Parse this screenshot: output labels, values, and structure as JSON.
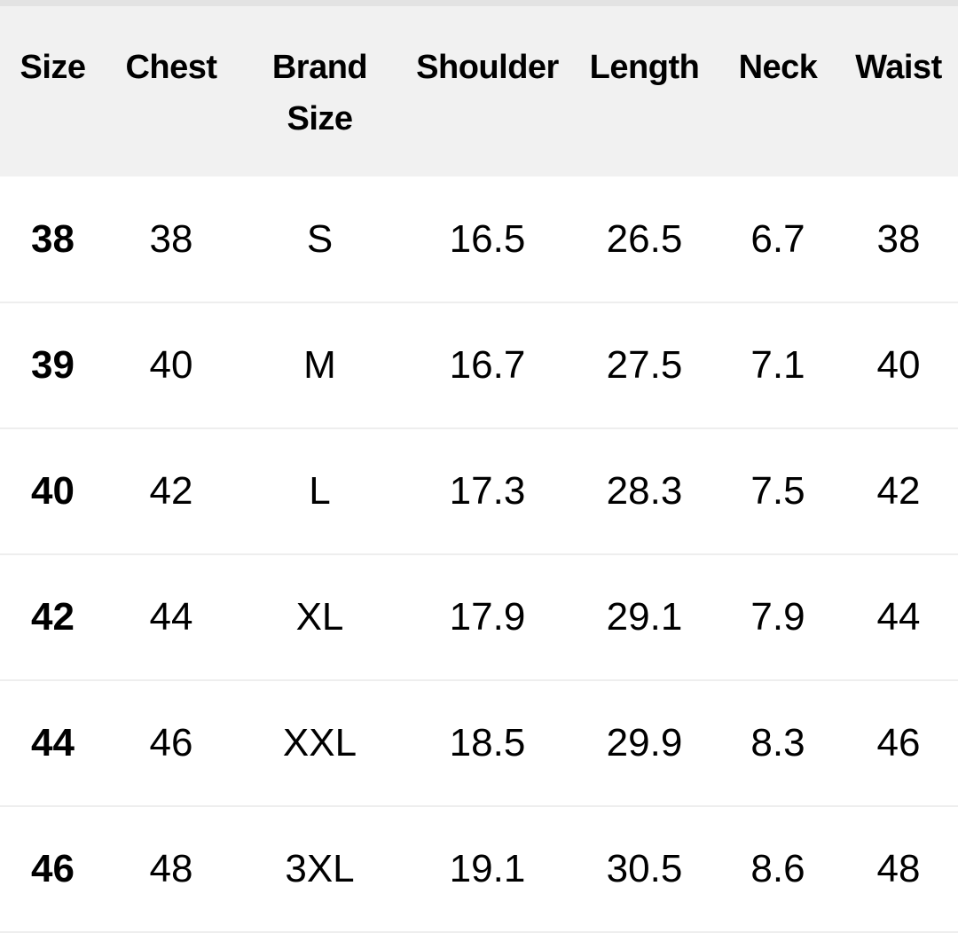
{
  "table": {
    "headers": [
      "Size",
      "Chest",
      "Brand Size",
      "Shoulder",
      "Length",
      "Neck",
      "Waist"
    ],
    "rows": [
      [
        "38",
        "38",
        "S",
        "16.5",
        "26.5",
        "6.7",
        "38"
      ],
      [
        "39",
        "40",
        "M",
        "16.7",
        "27.5",
        "7.1",
        "40"
      ],
      [
        "40",
        "42",
        "L",
        "17.3",
        "28.3",
        "7.5",
        "42"
      ],
      [
        "42",
        "44",
        "XL",
        "17.9",
        "29.1",
        "7.9",
        "44"
      ],
      [
        "44",
        "46",
        "XXL",
        "18.5",
        "29.9",
        "8.3",
        "46"
      ],
      [
        "46",
        "48",
        "3XL",
        "19.1",
        "30.5",
        "8.6",
        "48"
      ]
    ]
  },
  "colors": {
    "header_bg": "#f1f1f1",
    "top_bar": "#e3e3e3",
    "row_divider": "#eeeeee"
  }
}
